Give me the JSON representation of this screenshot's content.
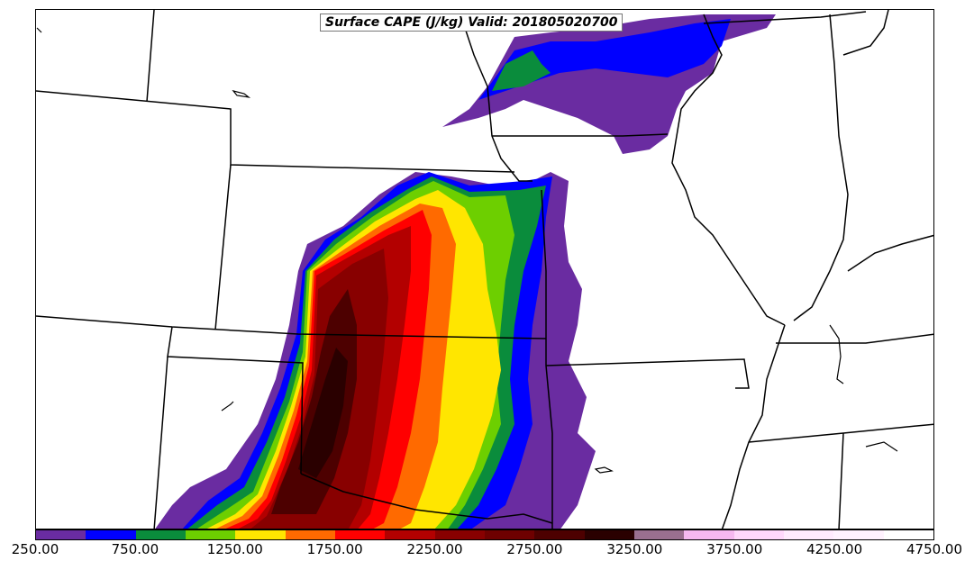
{
  "title": "Surface CAPE (J/kg) Valid: 201805020700",
  "colorbar": {
    "tick_labels": [
      "250.00",
      "750.00",
      "1250.00",
      "1750.00",
      "2250.00",
      "2750.00",
      "3250.00",
      "3750.00",
      "4250.00",
      "4750.00"
    ],
    "colors": [
      "#6a2ca1",
      "#0000ff",
      "#0a8c3c",
      "#6dcf00",
      "#ffe600",
      "#ff6a00",
      "#ff0000",
      "#b30000",
      "#880000",
      "#6e0000",
      "#4d0000",
      "#2a0000",
      "#9a6f8f",
      "#f6b8f0",
      "#ffd7fb",
      "#ffeafd",
      "#fff2fe",
      "#ffffff"
    ]
  }
}
